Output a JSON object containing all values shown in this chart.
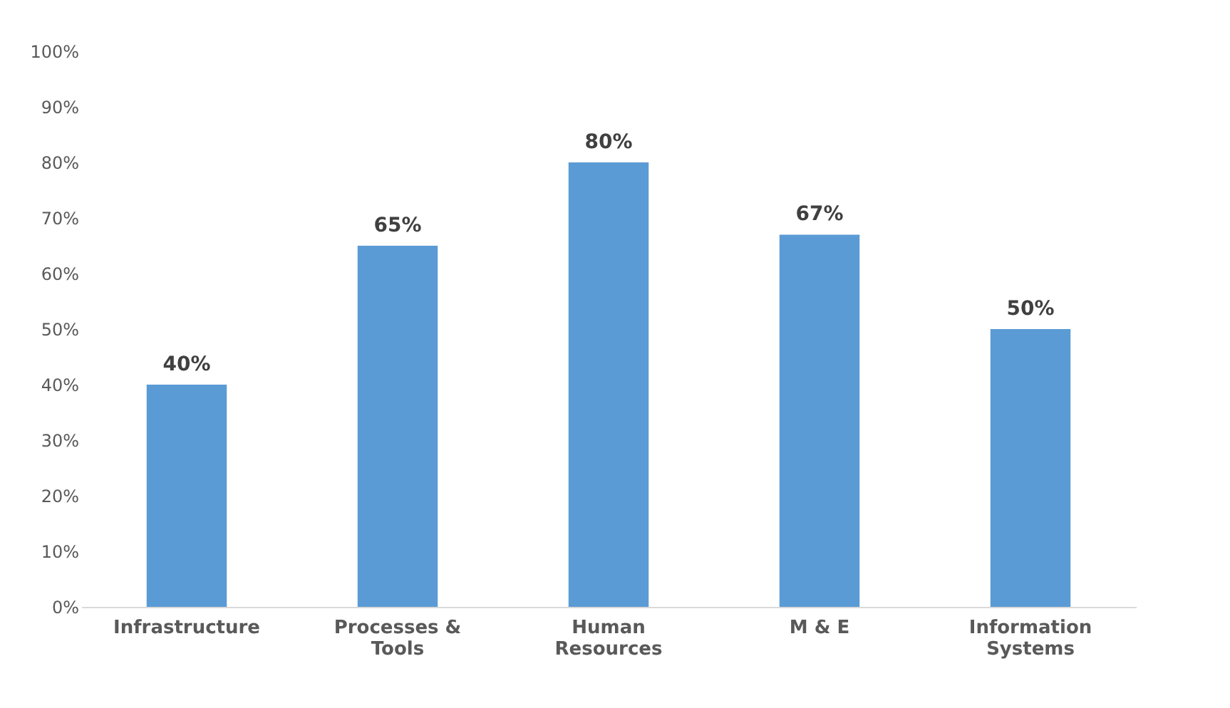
{
  "chart_data": {
    "type": "bar",
    "categories": [
      "Infrastructure",
      "Processes & Tools",
      "Human Resources",
      "M & E",
      "Information Systems"
    ],
    "values": [
      40,
      65,
      80,
      67,
      50
    ],
    "color": "#5b9bd5",
    "value_labels": [
      "40%",
      "65%",
      "80%",
      "67%",
      "50%"
    ],
    "ylim": [
      0,
      100
    ],
    "yticks": [
      {
        "value": 0,
        "label": "0%"
      },
      {
        "value": 10,
        "label": "10%"
      },
      {
        "value": 20,
        "label": "20%"
      },
      {
        "value": 30,
        "label": "30%"
      },
      {
        "value": 40,
        "label": "40%"
      },
      {
        "value": 50,
        "label": "50%"
      },
      {
        "value": 60,
        "label": "60%"
      },
      {
        "value": 70,
        "label": "70%"
      },
      {
        "value": 80,
        "label": "80%"
      },
      {
        "value": 90,
        "label": "90%"
      },
      {
        "value": 100,
        "label": "100%"
      }
    ],
    "grid": false
  }
}
